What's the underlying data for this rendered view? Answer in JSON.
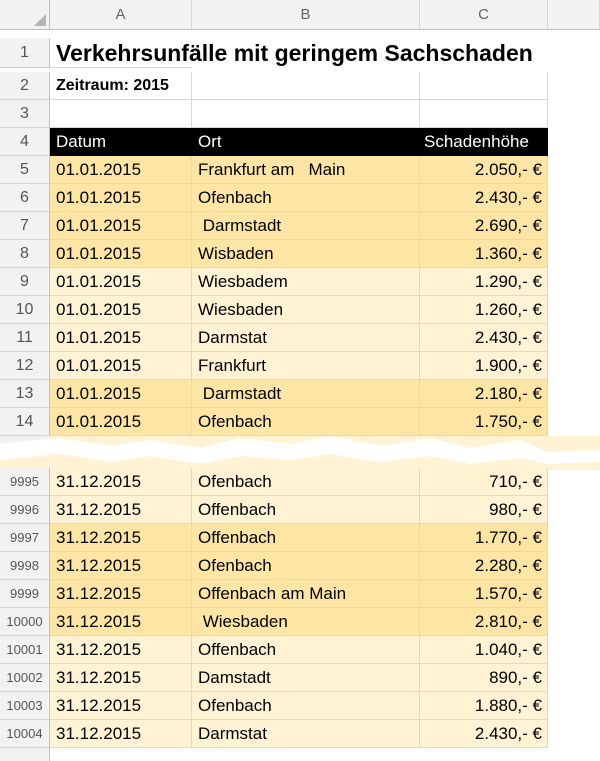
{
  "columns": [
    "A",
    "B",
    "C"
  ],
  "title": "Verkehrsunfälle mit geringem Sachschaden",
  "subtitle": "Zeitraum: 2015",
  "headers": {
    "date": "Datum",
    "place": "Ort",
    "damage": "Schadenhöhe"
  },
  "rows_top": [
    {
      "num": "1"
    },
    {
      "num": "2"
    },
    {
      "num": "3"
    },
    {
      "num": "4"
    },
    {
      "num": "5",
      "date": "01.01.2015",
      "place": "Frankfurt am   Main",
      "damage": "2.050,- €"
    },
    {
      "num": "6",
      "date": "01.01.2015",
      "place": "Ofenbach",
      "damage": "2.430,- €"
    },
    {
      "num": "7",
      "date": "01.01.2015",
      "place": " Darmstadt",
      "damage": "2.690,- €"
    },
    {
      "num": "8",
      "date": "01.01.2015",
      "place": "Wisbaden",
      "damage": "1.360,- €"
    },
    {
      "num": "9",
      "date": "01.01.2015",
      "place": "Wiesbadem",
      "damage": "1.290,- €"
    },
    {
      "num": "10",
      "date": "01.01.2015",
      "place": "Wiesbaden",
      "damage": "1.260,- €"
    },
    {
      "num": "11",
      "date": "01.01.2015",
      "place": "Darmstat",
      "damage": "2.430,- €"
    },
    {
      "num": "12",
      "date": "01.01.2015",
      "place": "Frankfurt",
      "damage": "1.900,- €"
    },
    {
      "num": "13",
      "date": "01.01.2015",
      "place": " Darmstadt",
      "damage": "2.180,- €"
    },
    {
      "num": "14",
      "date": "01.01.2015",
      "place": "Ofenbach",
      "damage": "1.750,- €"
    }
  ],
  "rows_bottom": [
    {
      "num": "9995",
      "date": "31.12.2015",
      "place": "Ofenbach",
      "damage": "710,- €"
    },
    {
      "num": "9996",
      "date": "31.12.2015",
      "place": "Offenbach",
      "damage": "980,- €"
    },
    {
      "num": "9997",
      "date": "31.12.2015",
      "place": "Offenbach",
      "damage": "1.770,- €"
    },
    {
      "num": "9998",
      "date": "31.12.2015",
      "place": "Ofenbach",
      "damage": "2.280,- €"
    },
    {
      "num": "9999",
      "date": "31.12.2015",
      "place": "Offenbach am Main",
      "damage": "1.570,- €"
    },
    {
      "num": "10000",
      "date": "31.12.2015",
      "place": " Wiesbaden",
      "damage": "2.810,- €"
    },
    {
      "num": "10001",
      "date": "31.12.2015",
      "place": "Offenbach",
      "damage": "1.040,- €"
    },
    {
      "num": "10002",
      "date": "31.12.2015",
      "place": "Damstadt",
      "damage": "890,- €"
    },
    {
      "num": "10003",
      "date": "31.12.2015",
      "place": "Ofenbach",
      "damage": "1.880,- €"
    },
    {
      "num": "10004",
      "date": "31.12.2015",
      "place": "Darmstat",
      "damage": "2.430,- €"
    }
  ],
  "colors": {
    "highlight_dark": "#fde5a3",
    "highlight_light": "#fff3d4",
    "header_bg": "#000000"
  }
}
